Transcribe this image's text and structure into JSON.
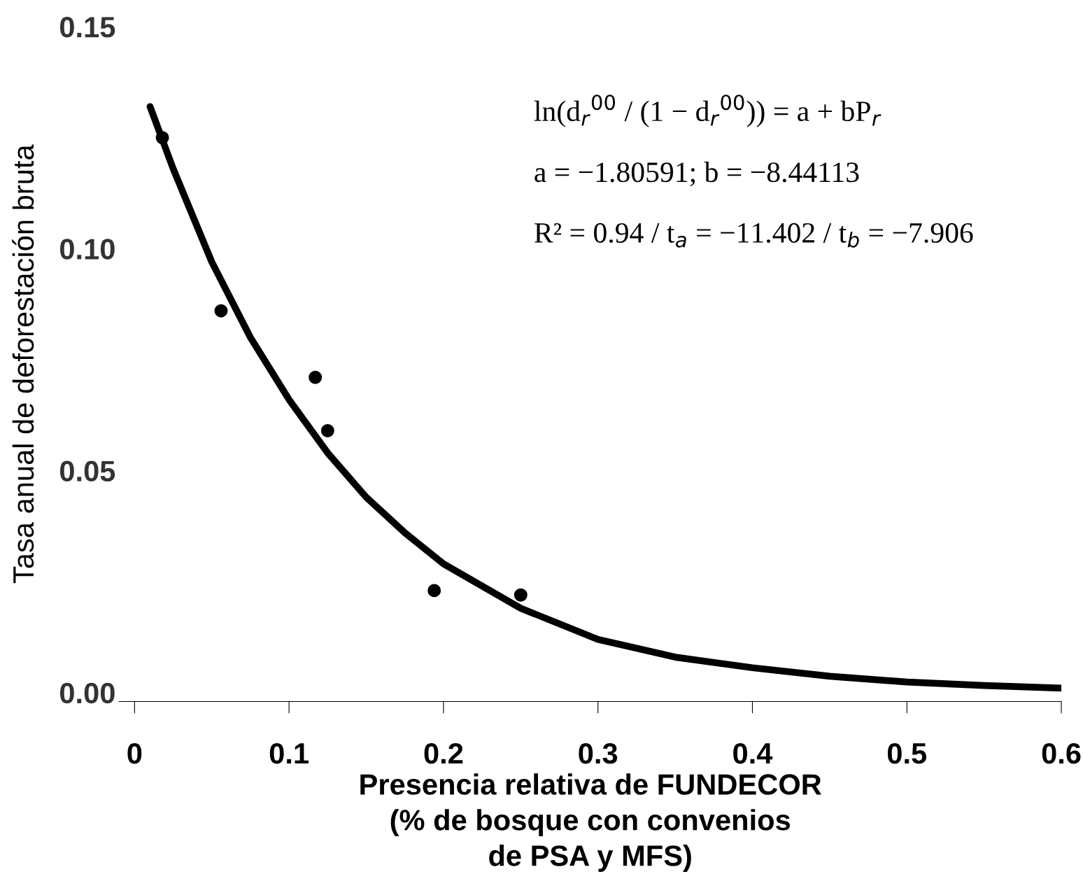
{
  "chart_data": {
    "type": "scatter",
    "xlabel": "Presencia relativa de FUNDECOR\n(% de bosque con convenios\nde PSA y MFS)",
    "ylabel": "Tasa anual de deforestación bruta",
    "series": [
      {
        "color": "#000000",
        "marker": "circle",
        "x": [
          0.018,
          0.056,
          0.117,
          0.125,
          0.194,
          0.25
        ],
        "values": [
          0.125,
          0.086,
          0.071,
          0.059,
          0.023,
          0.022
        ]
      },
      {
        "type": "line",
        "color": "#000000",
        "marker": "none",
        "line_style": "solid",
        "x": [
          0.01,
          0.025,
          0.05,
          0.075,
          0.1,
          0.125,
          0.15,
          0.175,
          0.2,
          0.25,
          0.3,
          0.35,
          0.4,
          0.45,
          0.5,
          0.55,
          0.6
        ],
        "values": [
          0.132,
          0.118,
          0.097,
          0.08,
          0.066,
          0.054,
          0.044,
          0.036,
          0.029,
          0.019,
          0.012,
          0.008,
          0.0056,
          0.0037,
          0.0024,
          0.0016,
          0.001
        ]
      }
    ],
    "annotations": [
      "ln(d$_{r}$$^{00}$ / (1 − d$_{r}$$^{00}$)) = a + bP$_{r}$",
      "a = −1.80591; b = −8.44113",
      "R² = 0.94 / t$_{a}$ = −11.402 / t$_{b}$ = −7.906"
    ],
    "xlim": [
      -0.01,
      0.6
    ],
    "ylim": [
      -0.002,
      0.15
    ],
    "xticks": [
      0,
      0.1,
      0.2,
      0.3,
      0.4,
      0.5,
      0.6
    ],
    "yticks": [
      {
        "value": 0,
        "label": "0.00"
      },
      {
        "value": 0.05,
        "label": "0.05"
      },
      {
        "value": 0.1,
        "label": "0.10"
      },
      {
        "value": 0.15,
        "label": "0.15"
      }
    ],
    "grid": false,
    "legend": false
  }
}
